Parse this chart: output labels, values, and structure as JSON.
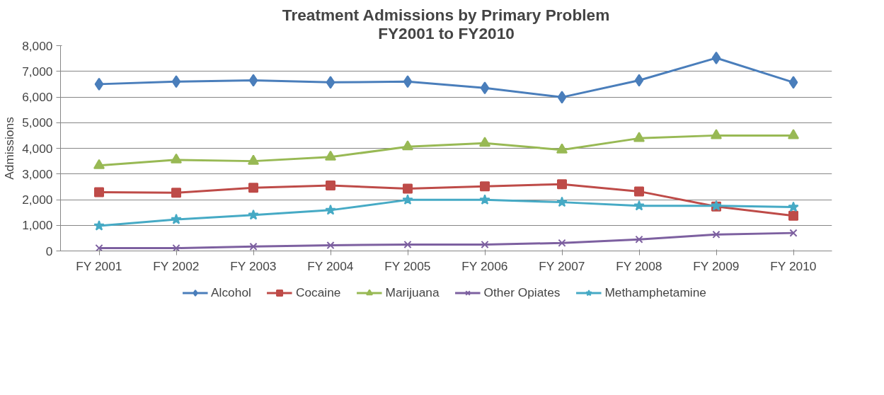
{
  "chart_data": {
    "type": "line",
    "title": "Treatment Admissions by Primary Problem\nFY2001 to FY2010",
    "ylabel": "Admissions",
    "categories": [
      "FY 2001",
      "FY 2002",
      "FY 2003",
      "FY 2004",
      "FY 2005",
      "FY 2006",
      "FY 2007",
      "FY 2008",
      "FY 2009",
      "FY 2010"
    ],
    "series": [
      {
        "name": "Alcohol",
        "color": "#4a7ebb",
        "marker": "diamond",
        "values": [
          6500,
          6600,
          6650,
          6570,
          6600,
          6350,
          5990,
          6650,
          7520,
          6570
        ]
      },
      {
        "name": "Cocaine",
        "color": "#be4b48",
        "marker": "square",
        "values": [
          2290,
          2270,
          2460,
          2550,
          2430,
          2520,
          2600,
          2320,
          1730,
          1370
        ]
      },
      {
        "name": "Marijuana",
        "color": "#98b954",
        "marker": "triangle",
        "values": [
          3330,
          3550,
          3500,
          3660,
          4060,
          4200,
          3940,
          4390,
          4500,
          4500
        ]
      },
      {
        "name": "Other Opiates",
        "color": "#7d60a0",
        "marker": "cross",
        "values": [
          110,
          110,
          170,
          220,
          250,
          250,
          310,
          450,
          640,
          700
        ]
      },
      {
        "name": "Methamphetamine",
        "color": "#46aac5",
        "marker": "star",
        "values": [
          980,
          1230,
          1400,
          1590,
          1990,
          1990,
          1900,
          1760,
          1760,
          1710
        ]
      }
    ],
    "ylim": [
      0,
      8000
    ],
    "yticks": [
      {
        "value": 0,
        "label": "0"
      },
      {
        "value": 1000,
        "label": "1,000"
      },
      {
        "value": 2000,
        "label": "2,000"
      },
      {
        "value": 3000,
        "label": "3,000"
      },
      {
        "value": 4000,
        "label": "4,000"
      },
      {
        "value": 5000,
        "label": "5,000"
      },
      {
        "value": 6000,
        "label": "6,000"
      },
      {
        "value": 7000,
        "label": "7,000"
      },
      {
        "value": 8000,
        "label": "8,000"
      }
    ],
    "grid": "y",
    "legend": "bottom",
    "line_style": "solid"
  }
}
